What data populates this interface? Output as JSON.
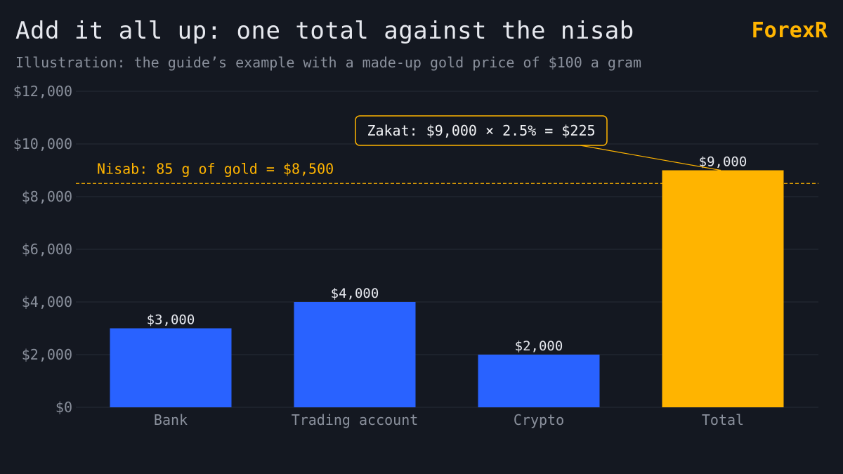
{
  "header": {
    "title": "Add it all up: one total against the nisab",
    "subtitle": "Illustration: the guide’s example with a made-up gold price of $100 a gram",
    "brand": "ForexR"
  },
  "colors": {
    "background": "#141821",
    "bar_component": "#2962ff",
    "bar_total": "#ffb400",
    "accent": "#ffb400",
    "grid": "#262b36",
    "muted_text": "#8a909c",
    "text": "#e6e8ee"
  },
  "chart_data": {
    "type": "bar",
    "title": "Add it all up: one total against the nisab",
    "subtitle": "Illustration: the guide’s example with a made-up gold price of $100 a gram",
    "xlabel": "",
    "ylabel": "",
    "categories": [
      "Bank",
      "Trading account",
      "Crypto",
      "Total"
    ],
    "values": [
      3000,
      4000,
      2000,
      9000
    ],
    "value_labels": [
      "$3,000",
      "$4,000",
      "$2,000",
      "$9,000"
    ],
    "highlight": [
      "Total"
    ],
    "ylim": [
      0,
      12000
    ],
    "yticks": [
      0,
      2000,
      4000,
      6000,
      8000,
      10000,
      12000
    ],
    "ytick_labels": [
      "$0",
      "$2,000",
      "$4,000",
      "$6,000",
      "$8,000",
      "$10,000",
      "$12,000"
    ],
    "grid": true,
    "reference_line": {
      "value": 8500,
      "label": "Nisab: 85 g of gold = $8,500",
      "style": "dashed"
    },
    "annotation": {
      "text": "Zakat: $9,000 × 2.5% = $225",
      "target": "Total"
    }
  }
}
